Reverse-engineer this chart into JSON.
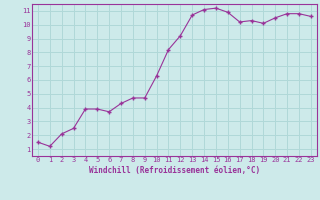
{
  "x": [
    0,
    1,
    2,
    3,
    4,
    5,
    6,
    7,
    8,
    9,
    10,
    11,
    12,
    13,
    14,
    15,
    16,
    17,
    18,
    19,
    20,
    21,
    22,
    23
  ],
  "y": [
    1.5,
    1.2,
    2.1,
    2.5,
    3.9,
    3.9,
    3.7,
    4.3,
    4.7,
    4.7,
    6.3,
    8.2,
    9.2,
    10.7,
    11.1,
    11.2,
    10.9,
    10.2,
    10.3,
    10.1,
    10.5,
    10.8,
    10.8,
    10.6
  ],
  "line_color": "#993399",
  "marker": "+",
  "marker_size": 3.5,
  "marker_linewidth": 1.0,
  "line_width": 0.8,
  "xlabel": "Windchill (Refroidissement éolien,°C)",
  "xlim": [
    -0.5,
    23.5
  ],
  "ylim": [
    0.5,
    11.5
  ],
  "yticks": [
    1,
    2,
    3,
    4,
    5,
    6,
    7,
    8,
    9,
    10,
    11
  ],
  "xticks": [
    0,
    1,
    2,
    3,
    4,
    5,
    6,
    7,
    8,
    9,
    10,
    11,
    12,
    13,
    14,
    15,
    16,
    17,
    18,
    19,
    20,
    21,
    22,
    23
  ],
  "bg_color": "#cdeaea",
  "grid_color": "#b0d8d8",
  "label_color": "#993399",
  "tick_fontsize": 5.0,
  "xlabel_fontsize": 5.5,
  "font_family": "monospace"
}
